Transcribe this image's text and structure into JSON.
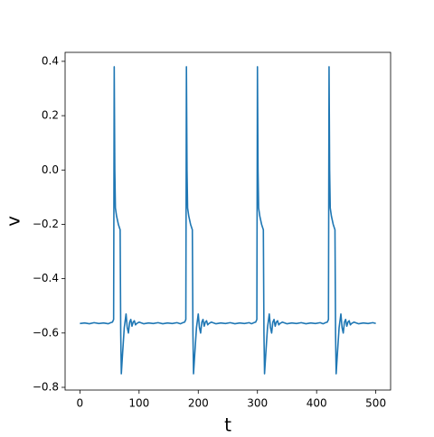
{
  "chart_data": {
    "type": "line",
    "xlabel": "t",
    "ylabel": "v",
    "xlim": [
      -25,
      525
    ],
    "ylim": [
      -0.81,
      0.433
    ],
    "xticks": [
      0,
      100,
      200,
      300,
      400,
      500
    ],
    "yticks": [
      {
        "value": -0.8,
        "label": "−0.8"
      },
      {
        "value": -0.6,
        "label": "−0.6"
      },
      {
        "value": -0.4,
        "label": "−0.4"
      },
      {
        "value": -0.2,
        "label": "−0.2"
      },
      {
        "value": 0,
        "label": "0.0"
      },
      0.2,
      0.4
    ],
    "x": [
      0,
      8,
      16,
      24,
      32,
      40,
      48,
      52,
      55,
      57,
      58,
      59,
      60,
      62,
      65,
      68,
      69,
      70,
      72,
      75,
      78,
      80,
      82,
      84,
      86,
      88,
      90,
      92,
      94,
      96,
      100,
      108,
      116,
      124,
      132,
      140,
      148,
      156,
      164,
      170,
      174,
      177,
      179,
      180,
      181,
      182,
      184,
      187,
      190,
      191,
      192,
      194,
      197,
      200,
      202,
      204,
      206,
      208,
      210,
      212,
      214,
      216,
      218,
      222,
      230,
      238,
      246,
      254,
      262,
      270,
      278,
      286,
      290,
      294,
      297,
      299,
      300,
      301,
      302,
      304,
      307,
      310,
      311,
      312,
      314,
      317,
      320,
      322,
      324,
      326,
      328,
      330,
      332,
      334,
      336,
      338,
      342,
      350,
      358,
      366,
      374,
      382,
      390,
      398,
      406,
      411,
      415,
      418,
      420,
      421,
      422,
      423,
      425,
      428,
      431,
      432,
      433,
      435,
      438,
      441,
      443,
      445,
      447,
      449,
      451,
      453,
      455,
      457,
      459,
      463,
      471,
      479,
      487,
      495,
      500
    ],
    "series": [
      {
        "name": "v",
        "color": "#1f77b4",
        "values": [
          -0.565,
          -0.563,
          -0.566,
          -0.562,
          -0.565,
          -0.563,
          -0.566,
          -0.562,
          -0.56,
          -0.55,
          0.38,
          0.0,
          -0.14,
          -0.17,
          -0.2,
          -0.22,
          -0.6,
          -0.75,
          -0.68,
          -0.58,
          -0.53,
          -0.58,
          -0.6,
          -0.56,
          -0.55,
          -0.575,
          -0.56,
          -0.555,
          -0.57,
          -0.565,
          -0.56,
          -0.566,
          -0.563,
          -0.565,
          -0.562,
          -0.566,
          -0.563,
          -0.565,
          -0.562,
          -0.566,
          -0.562,
          -0.56,
          -0.55,
          0.38,
          0.0,
          -0.14,
          -0.17,
          -0.2,
          -0.22,
          -0.6,
          -0.75,
          -0.68,
          -0.58,
          -0.53,
          -0.58,
          -0.6,
          -0.56,
          -0.55,
          -0.575,
          -0.56,
          -0.555,
          -0.57,
          -0.565,
          -0.56,
          -0.566,
          -0.563,
          -0.565,
          -0.562,
          -0.566,
          -0.563,
          -0.565,
          -0.562,
          -0.566,
          -0.562,
          -0.56,
          -0.55,
          0.38,
          0.0,
          -0.14,
          -0.17,
          -0.2,
          -0.22,
          -0.6,
          -0.75,
          -0.68,
          -0.58,
          -0.53,
          -0.58,
          -0.6,
          -0.56,
          -0.55,
          -0.575,
          -0.56,
          -0.555,
          -0.57,
          -0.565,
          -0.56,
          -0.566,
          -0.563,
          -0.565,
          -0.562,
          -0.566,
          -0.563,
          -0.565,
          -0.562,
          -0.566,
          -0.562,
          -0.56,
          -0.55,
          0.38,
          0.0,
          -0.14,
          -0.17,
          -0.2,
          -0.22,
          -0.6,
          -0.75,
          -0.68,
          -0.58,
          -0.53,
          -0.58,
          -0.6,
          -0.56,
          -0.55,
          -0.575,
          -0.56,
          -0.555,
          -0.57,
          -0.565,
          -0.56,
          -0.566,
          -0.563,
          -0.565,
          -0.562,
          -0.565
        ]
      }
    ]
  }
}
